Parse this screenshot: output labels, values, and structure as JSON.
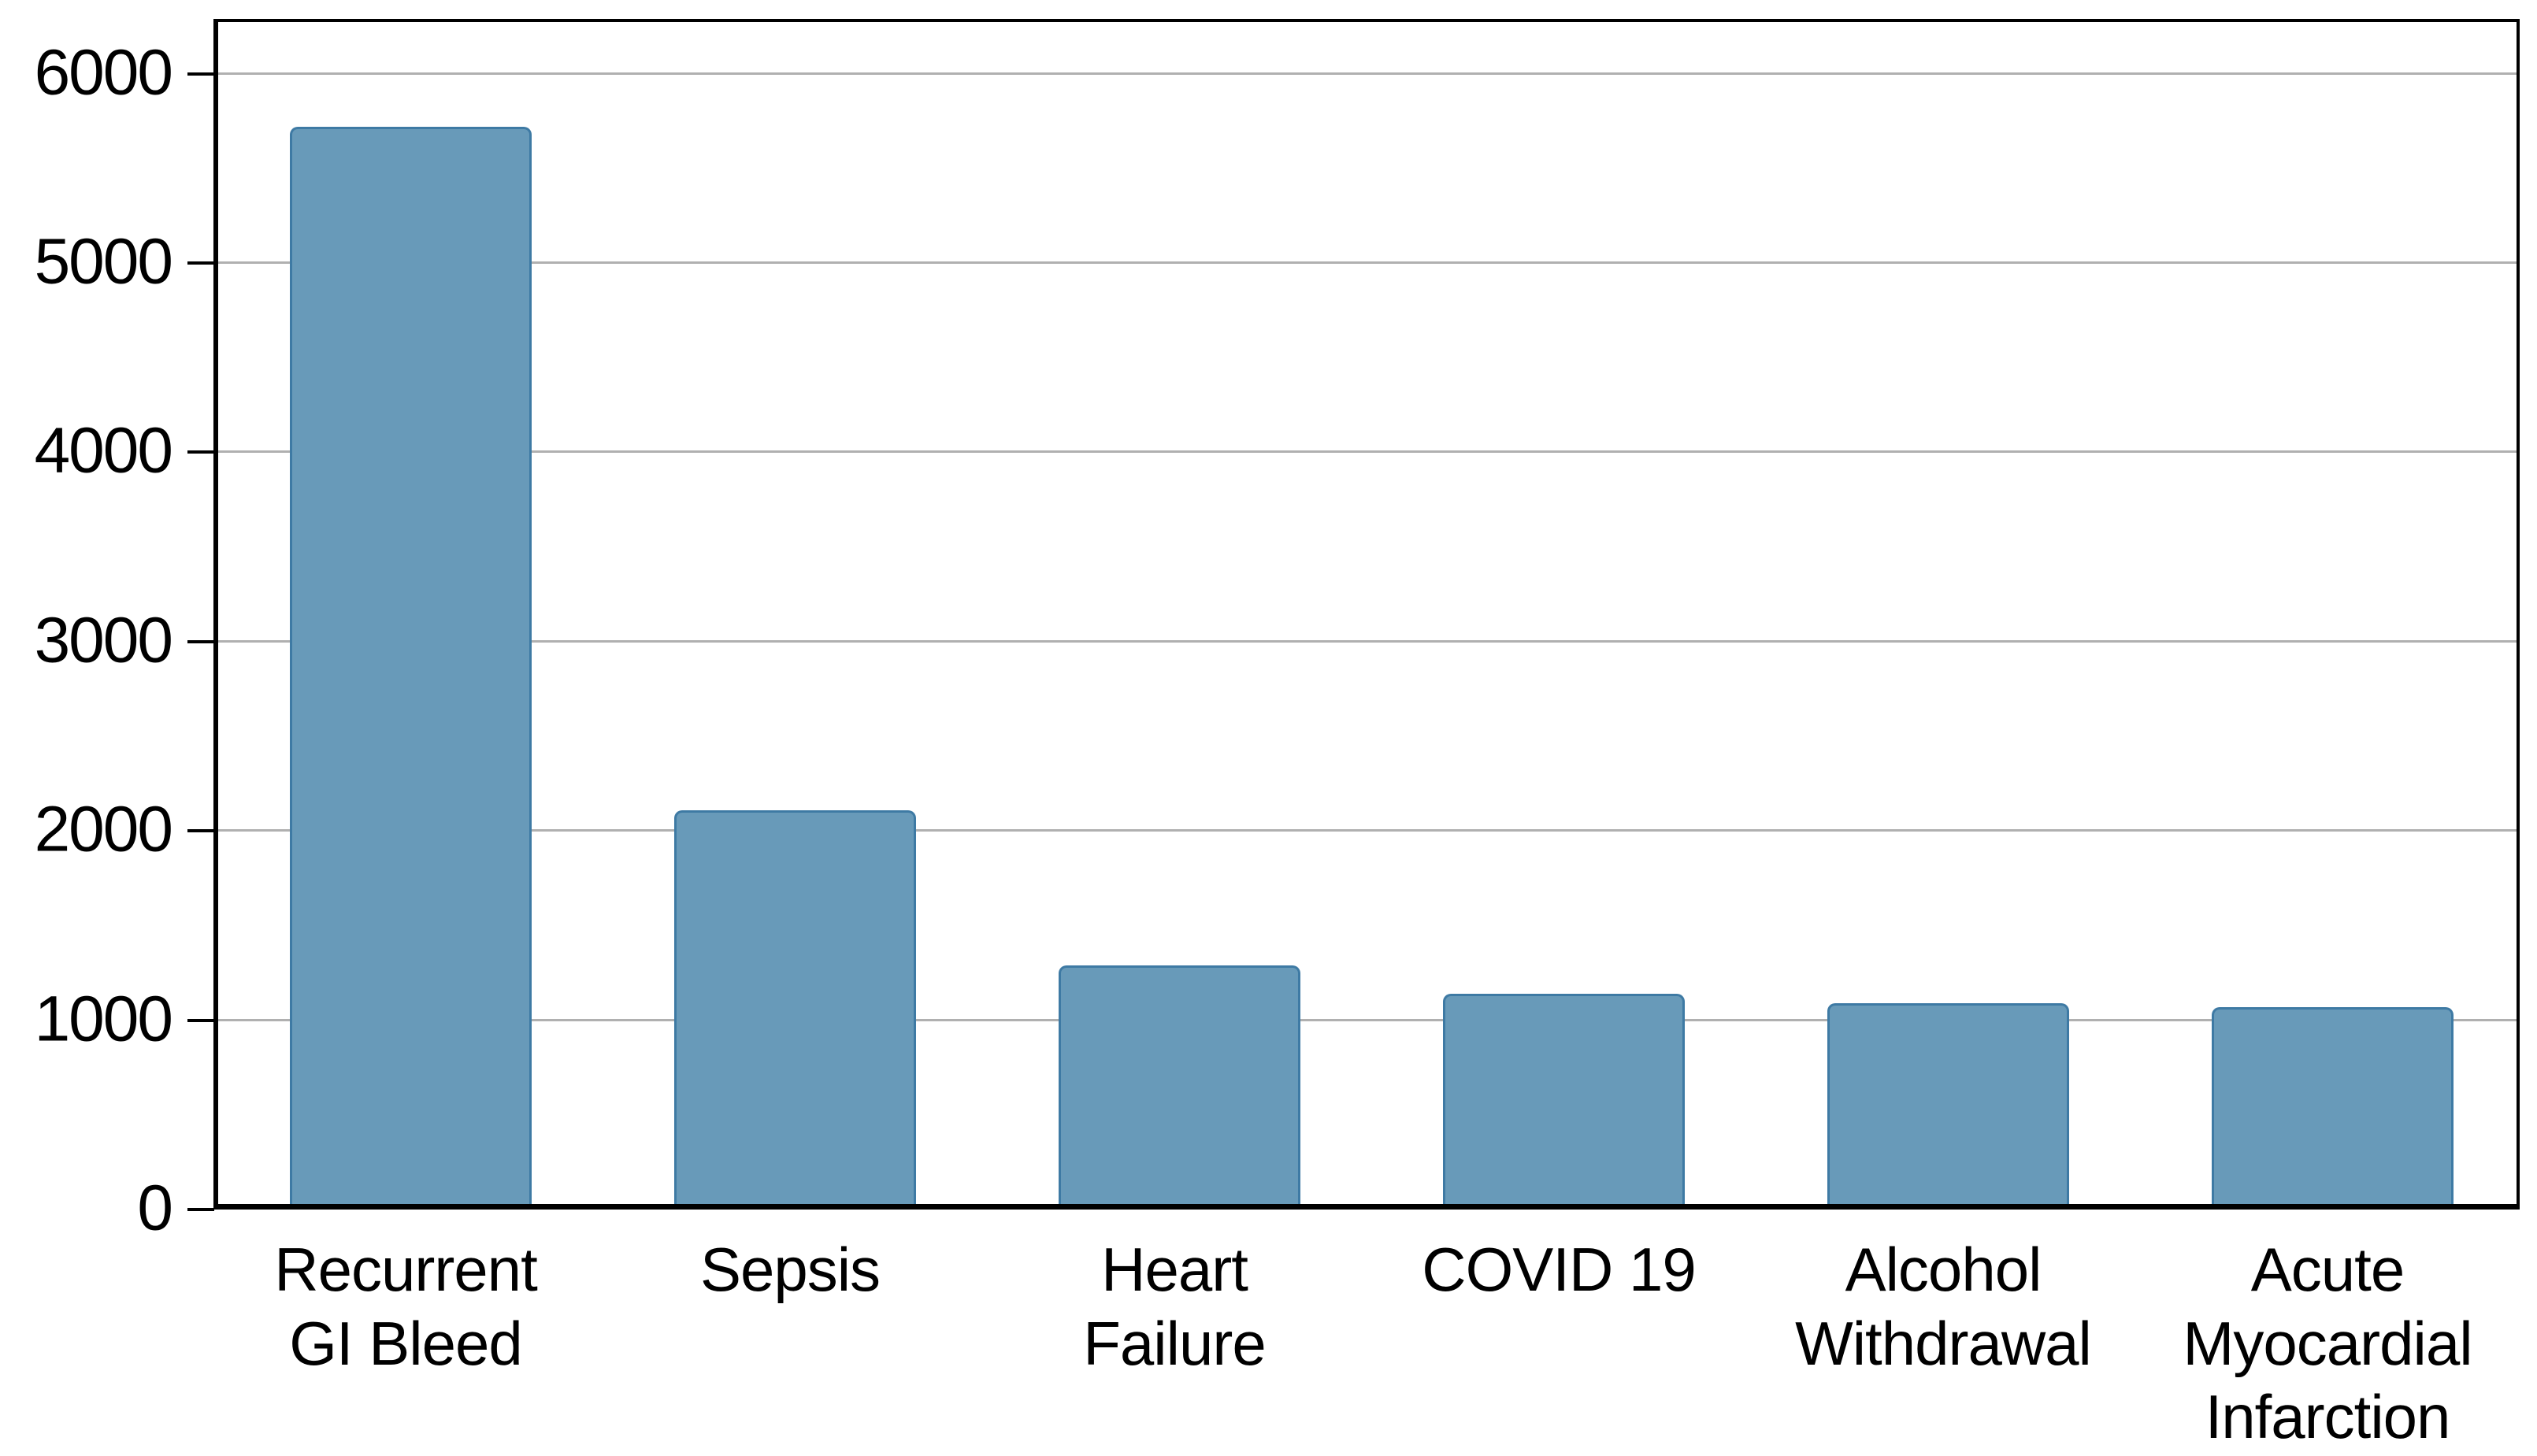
{
  "chart_data": {
    "type": "bar",
    "title": "",
    "xlabel": "",
    "ylabel": "",
    "categories": [
      "Recurrent\nGI Bleed",
      "Sepsis",
      "Heart\nFailure",
      "COVID 19",
      "Alcohol\nWithdrawal",
      "Acute\nMyocardial\nInfarction"
    ],
    "values": [
      5720,
      2110,
      1290,
      1140,
      1090,
      1070
    ],
    "yticks": [
      0,
      1000,
      2000,
      3000,
      4000,
      5000,
      6000
    ],
    "ylim": [
      0,
      6290
    ],
    "grid": true,
    "legend_position": "none",
    "bar_color": "#689ab9",
    "bar_border_color": "#3e7aa4",
    "gridline_color": "#b0b0b0",
    "axis_color": "#000000",
    "background_color": "#ffffff"
  }
}
